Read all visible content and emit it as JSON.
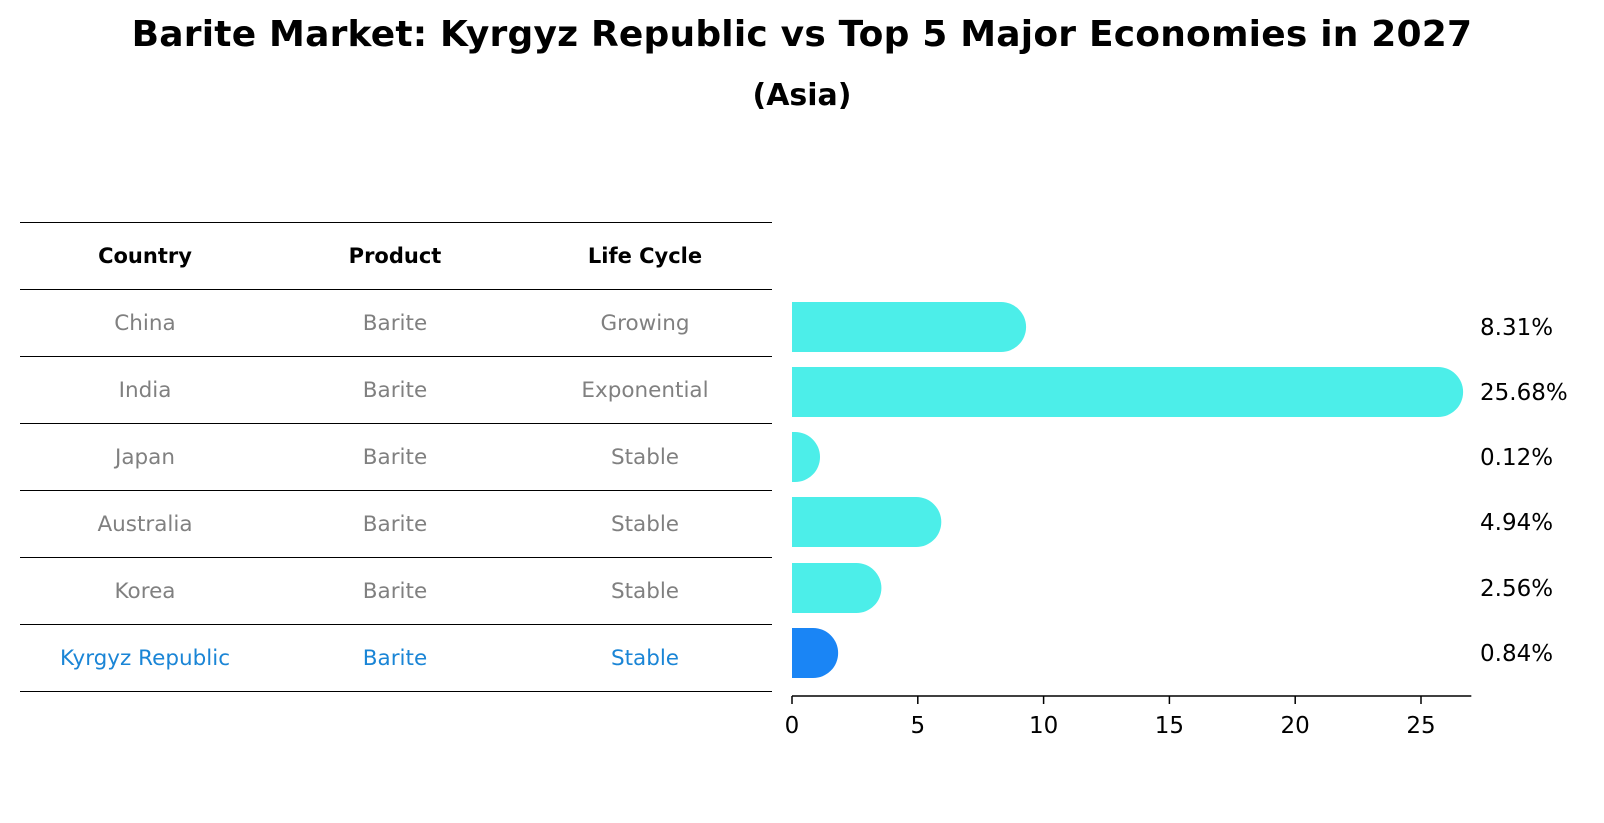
{
  "title": "Barite Market: Kyrgyz Republic vs Top 5 Major Economies in 2027",
  "subtitle": "(Asia)",
  "table": {
    "headers": [
      "Country",
      "Product",
      "Life Cycle"
    ],
    "rows": [
      [
        "China",
        "Barite",
        "Growing"
      ],
      [
        "India",
        "Barite",
        "Exponential"
      ],
      [
        "Japan",
        "Barite",
        "Stable"
      ],
      [
        "Australia",
        "Barite",
        "Stable"
      ],
      [
        "Korea",
        "Barite",
        "Stable"
      ],
      [
        "Kyrgyz Republic",
        "Barite",
        "Stable"
      ]
    ],
    "highlight_row": 5,
    "text_color": "#808080",
    "highlight_color": "#1a85d6"
  },
  "chart_data": {
    "type": "bar",
    "orientation": "horizontal",
    "categories": [
      "China",
      "India",
      "Japan",
      "Australia",
      "Korea",
      "Kyrgyz Republic"
    ],
    "values": [
      8.31,
      25.68,
      0.12,
      4.94,
      2.56,
      0.84
    ],
    "value_labels": [
      "8.31%",
      "25.68%",
      "0.12%",
      "4.94%",
      "2.56%",
      "0.84%"
    ],
    "xticks": [
      0,
      5,
      10,
      15,
      20,
      25
    ],
    "xlim": [
      0,
      27
    ],
    "bar_color": "#4ceee9",
    "highlight_color": "#1a85f5",
    "highlight_index": 5
  }
}
